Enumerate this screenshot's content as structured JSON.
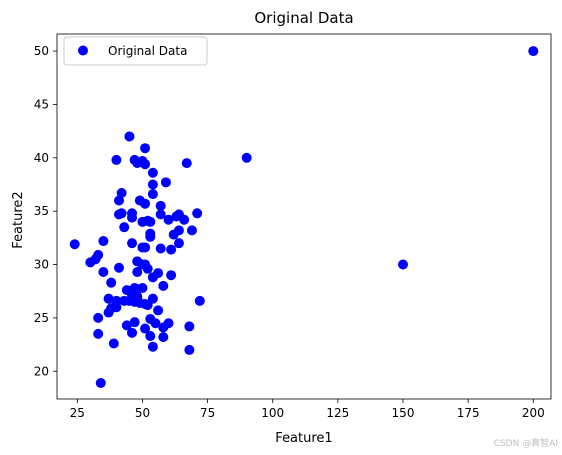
{
  "chart_data": {
    "type": "scatter",
    "title": "Original Data",
    "xlabel": "Feature1",
    "ylabel": "Feature2",
    "xlim": [
      17.2,
      206.8
    ],
    "ylim": [
      17.4,
      51.6
    ],
    "xticks": [
      25,
      50,
      75,
      100,
      125,
      150,
      175,
      200
    ],
    "yticks": [
      20,
      25,
      30,
      35,
      40,
      45,
      50
    ],
    "grid": false,
    "legend_position": "top-left",
    "series": [
      {
        "name": "Original Data",
        "color": "#0000ff",
        "marker": "circle",
        "points": [
          [
            24,
            31.9
          ],
          [
            30,
            30.2
          ],
          [
            32,
            30.5
          ],
          [
            33,
            30.9
          ],
          [
            33,
            25.0
          ],
          [
            33,
            23.5
          ],
          [
            34,
            18.9
          ],
          [
            35,
            29.3
          ],
          [
            35,
            32.2
          ],
          [
            37,
            25.5
          ],
          [
            37,
            26.8
          ],
          [
            38,
            25.9
          ],
          [
            38,
            28.3
          ],
          [
            39,
            22.6
          ],
          [
            40,
            39.8
          ],
          [
            40,
            26.0
          ],
          [
            40,
            26.6
          ],
          [
            41,
            29.7
          ],
          [
            41,
            34.7
          ],
          [
            41,
            36.0
          ],
          [
            42,
            34.8
          ],
          [
            42,
            36.7
          ],
          [
            43,
            26.6
          ],
          [
            43,
            33.5
          ],
          [
            44,
            27.6
          ],
          [
            44,
            24.3
          ],
          [
            45,
            42.0
          ],
          [
            45,
            26.6
          ],
          [
            46,
            34.8
          ],
          [
            46,
            34.4
          ],
          [
            46,
            32.0
          ],
          [
            46,
            27.0
          ],
          [
            46,
            23.6
          ],
          [
            47,
            39.8
          ],
          [
            47,
            27.8
          ],
          [
            47,
            26.5
          ],
          [
            47,
            24.6
          ],
          [
            48,
            39.5
          ],
          [
            48,
            30.3
          ],
          [
            48,
            29.3
          ],
          [
            48,
            27.7
          ],
          [
            48,
            27.0
          ],
          [
            49,
            36.0
          ],
          [
            49,
            26.4
          ],
          [
            50,
            39.7
          ],
          [
            50,
            34.0
          ],
          [
            50,
            31.6
          ],
          [
            50,
            30.0
          ],
          [
            50,
            27.8
          ],
          [
            51,
            40.9
          ],
          [
            51,
            39.4
          ],
          [
            51,
            35.7
          ],
          [
            51,
            31.6
          ],
          [
            51,
            30.0
          ],
          [
            51,
            26.3
          ],
          [
            51,
            24.0
          ],
          [
            52,
            34.1
          ],
          [
            52,
            29.6
          ],
          [
            52,
            26.2
          ],
          [
            53,
            34.0
          ],
          [
            53,
            32.9
          ],
          [
            53,
            32.6
          ],
          [
            53,
            24.9
          ],
          [
            53,
            23.3
          ],
          [
            54,
            38.6
          ],
          [
            54,
            37.5
          ],
          [
            54,
            36.6
          ],
          [
            54,
            28.8
          ],
          [
            54,
            26.8
          ],
          [
            54,
            22.3
          ],
          [
            55,
            24.5
          ],
          [
            56,
            29.2
          ],
          [
            56,
            25.7
          ],
          [
            57,
            35.5
          ],
          [
            57,
            34.7
          ],
          [
            57,
            31.5
          ],
          [
            58,
            28.0
          ],
          [
            58,
            24.1
          ],
          [
            58,
            23.2
          ],
          [
            59,
            37.7
          ],
          [
            60,
            34.2
          ],
          [
            60,
            24.5
          ],
          [
            61,
            31.4
          ],
          [
            61,
            29.0
          ],
          [
            62,
            32.8
          ],
          [
            63,
            34.5
          ],
          [
            64,
            34.7
          ],
          [
            64,
            33.2
          ],
          [
            64,
            32.0
          ],
          [
            66,
            34.2
          ],
          [
            67,
            39.5
          ],
          [
            68,
            24.2
          ],
          [
            68,
            22.0
          ],
          [
            69,
            33.2
          ],
          [
            71,
            34.8
          ],
          [
            72,
            26.6
          ],
          [
            90,
            40.0
          ],
          [
            150,
            30.0
          ],
          [
            200,
            50.0
          ]
        ]
      }
    ]
  },
  "watermark": "CSDN @真智AI"
}
